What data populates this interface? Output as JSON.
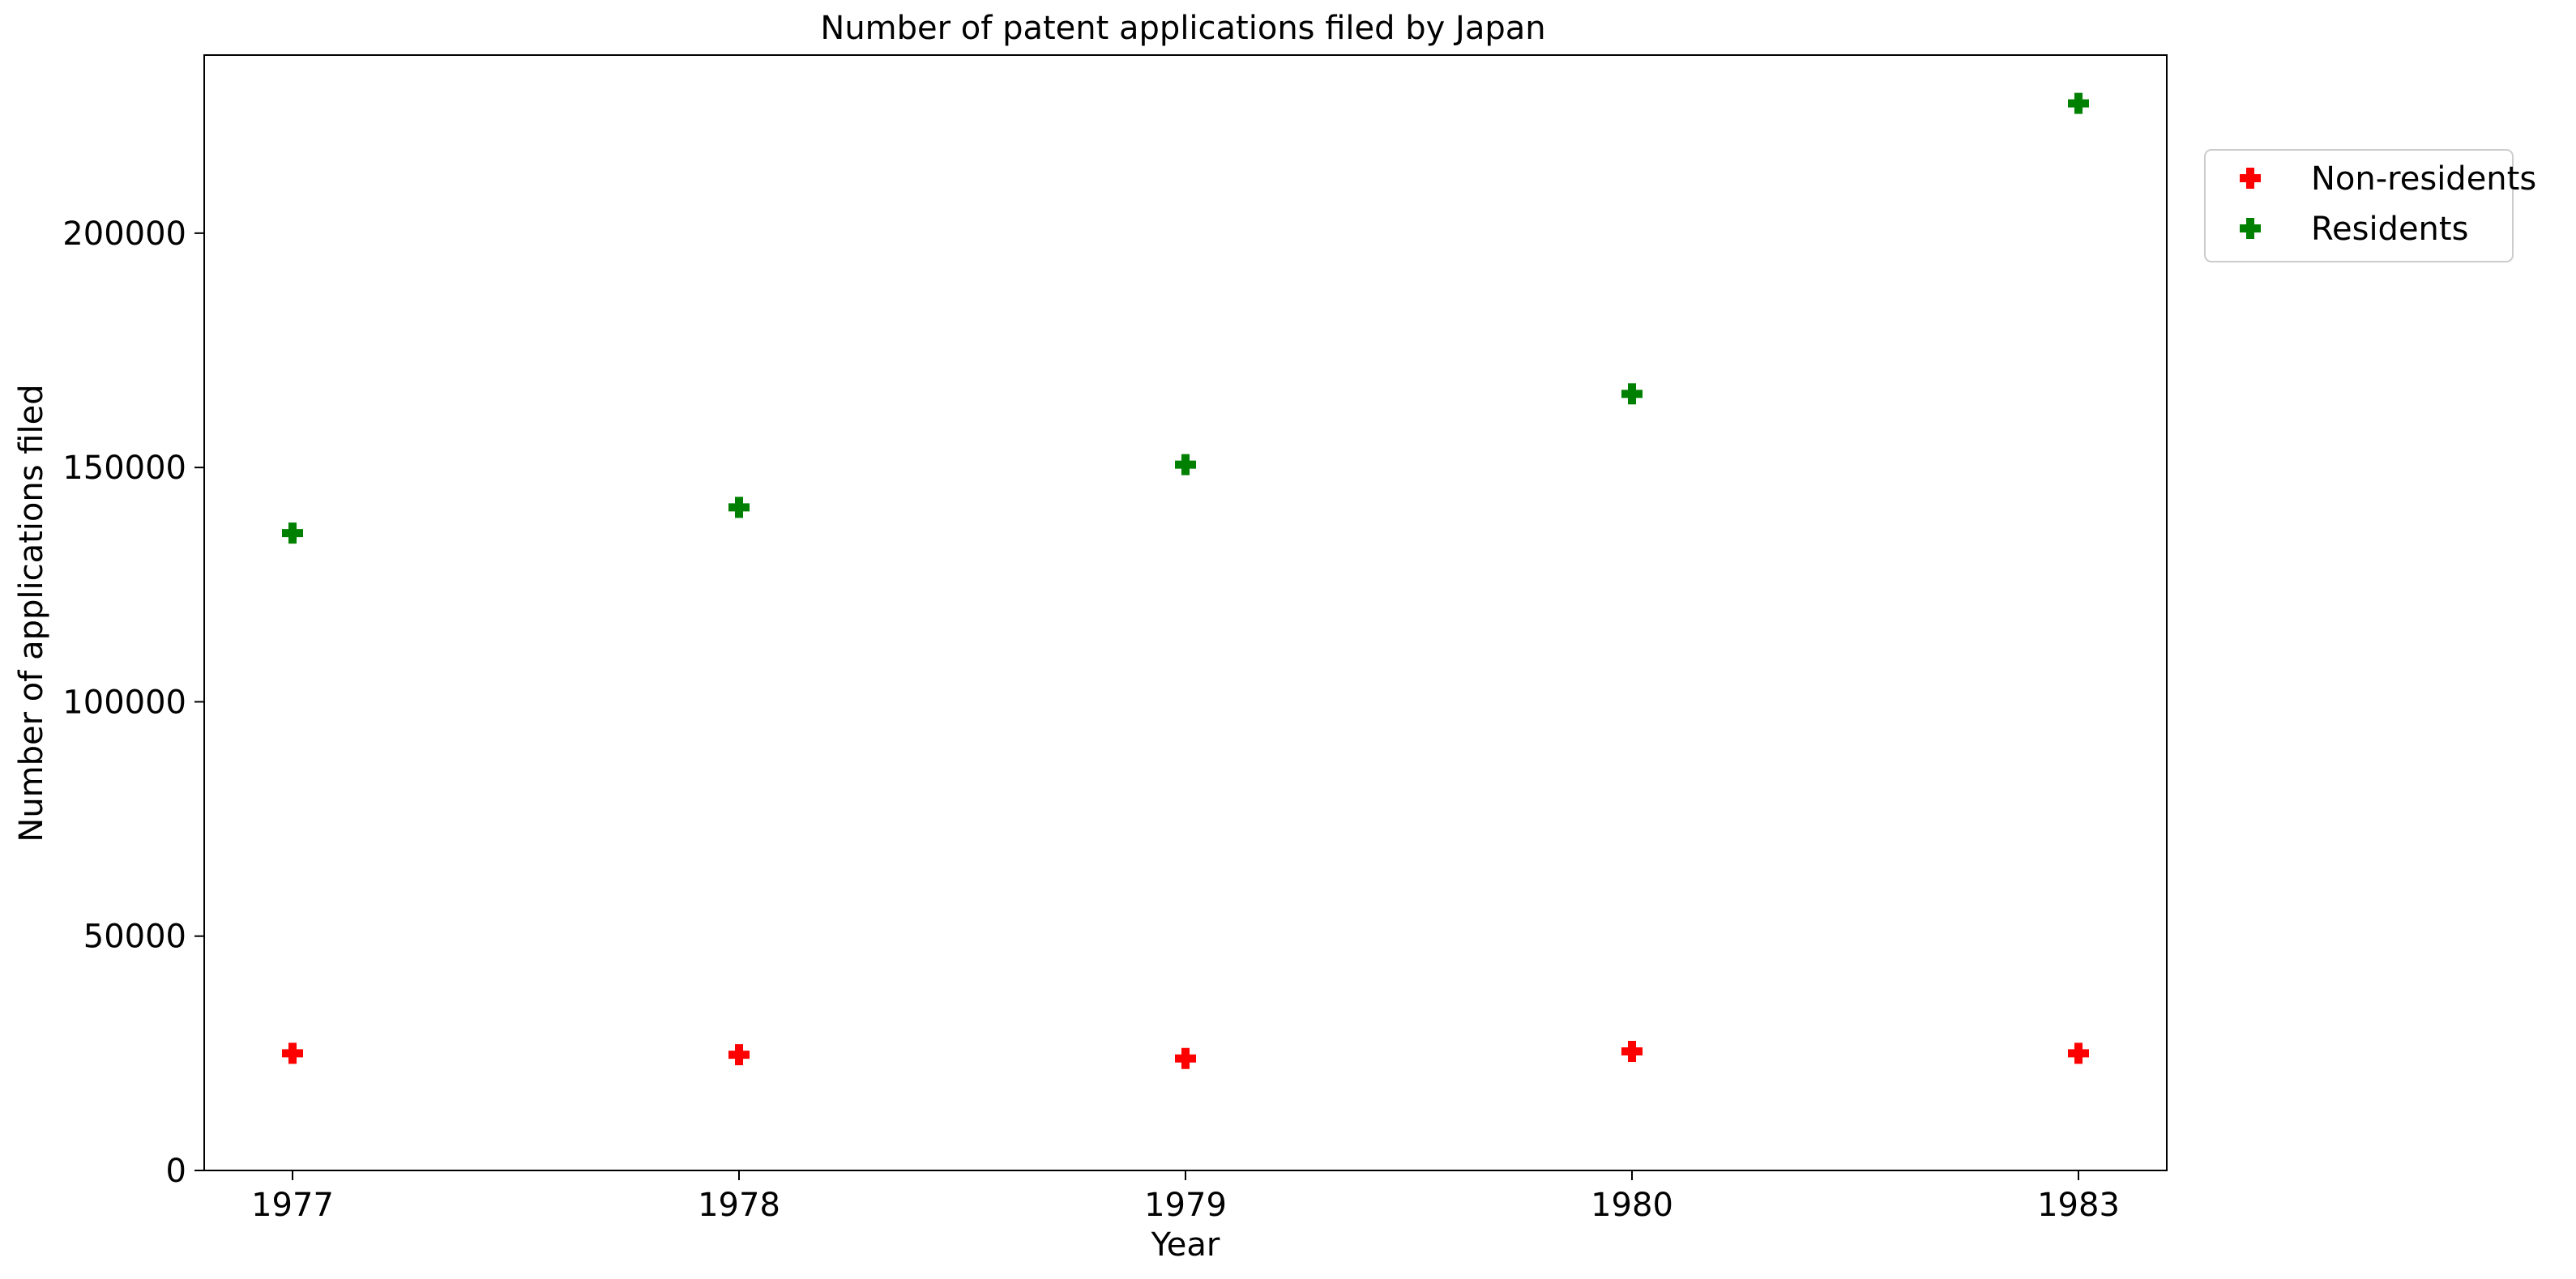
{
  "chart_data": {
    "type": "scatter",
    "title": "Number of patent applications filed by Japan",
    "xlabel": "Year",
    "ylabel": "Number of applications filed",
    "categories": [
      "1977",
      "1978",
      "1979",
      "1980",
      "1983"
    ],
    "yticks": [
      0,
      50000,
      100000,
      150000,
      200000
    ],
    "ylim": [
      0,
      238000
    ],
    "grid": false,
    "legend_position": "upper-right outside",
    "marker": "plus-filled",
    "series": [
      {
        "name": "Non-residents",
        "color": "#ff0000",
        "values": [
          25000,
          24700,
          23900,
          25400,
          25000
        ]
      },
      {
        "name": "Residents",
        "color": "#008000",
        "values": [
          136000,
          141500,
          150600,
          165700,
          227700
        ]
      }
    ]
  }
}
